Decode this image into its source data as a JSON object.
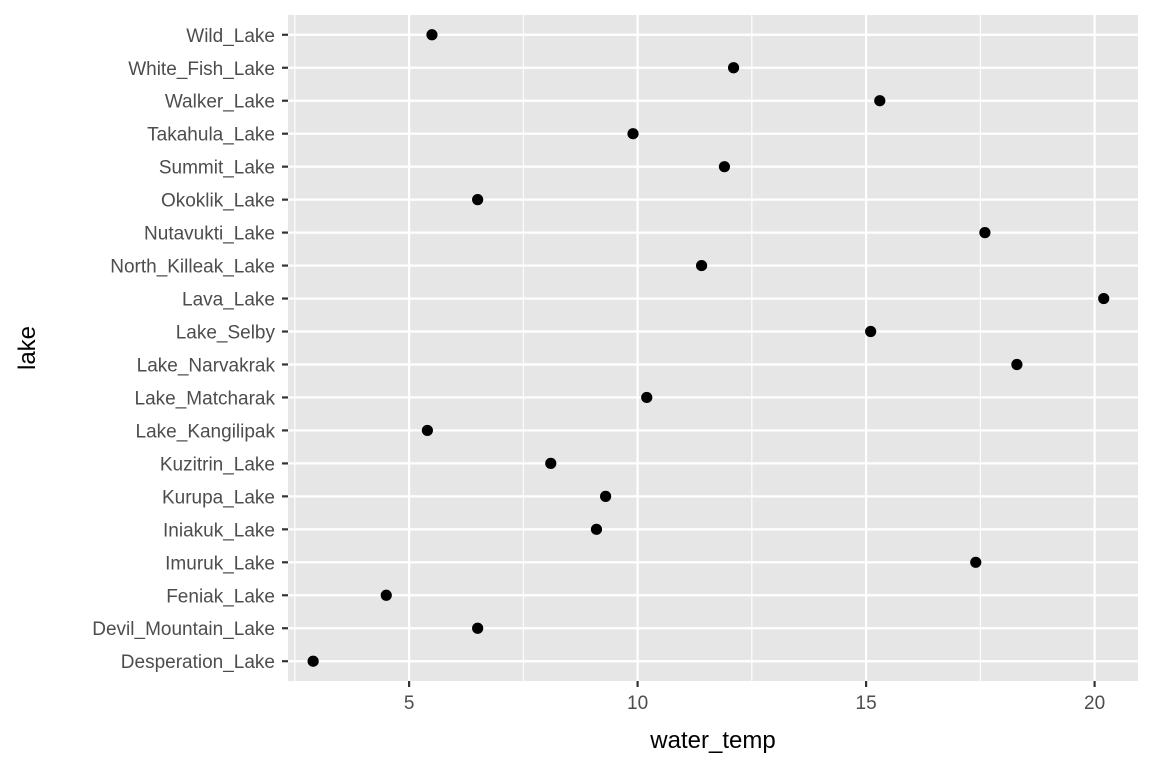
{
  "chart_data": {
    "type": "scatter",
    "xlabel": "water_temp",
    "ylabel": "lake",
    "xlim": [
      2.35,
      20.95
    ],
    "x_ticks": [
      5,
      10,
      15,
      20
    ],
    "x_tick_labels": [
      "5",
      "10",
      "15",
      "20"
    ],
    "grid": true,
    "panel_background": "#e6e6e6",
    "grid_color": "#ffffff",
    "point_color": "#000000",
    "categories": [
      "Desperation_Lake",
      "Devil_Mountain_Lake",
      "Feniak_Lake",
      "Imuruk_Lake",
      "Iniakuk_Lake",
      "Kurupa_Lake",
      "Kuzitrin_Lake",
      "Lake_Kangilipak",
      "Lake_Matcharak",
      "Lake_Narvakrak",
      "Lake_Selby",
      "Lava_Lake",
      "North_Killeak_Lake",
      "Nutavukti_Lake",
      "Okoklik_Lake",
      "Summit_Lake",
      "Takahula_Lake",
      "Walker_Lake",
      "White_Fish_Lake",
      "Wild_Lake"
    ],
    "values": [
      2.9,
      6.5,
      4.5,
      17.4,
      9.1,
      9.3,
      8.1,
      5.4,
      10.2,
      18.3,
      15.1,
      20.2,
      11.4,
      17.6,
      6.5,
      11.9,
      9.9,
      15.3,
      12.1,
      5.5
    ]
  }
}
